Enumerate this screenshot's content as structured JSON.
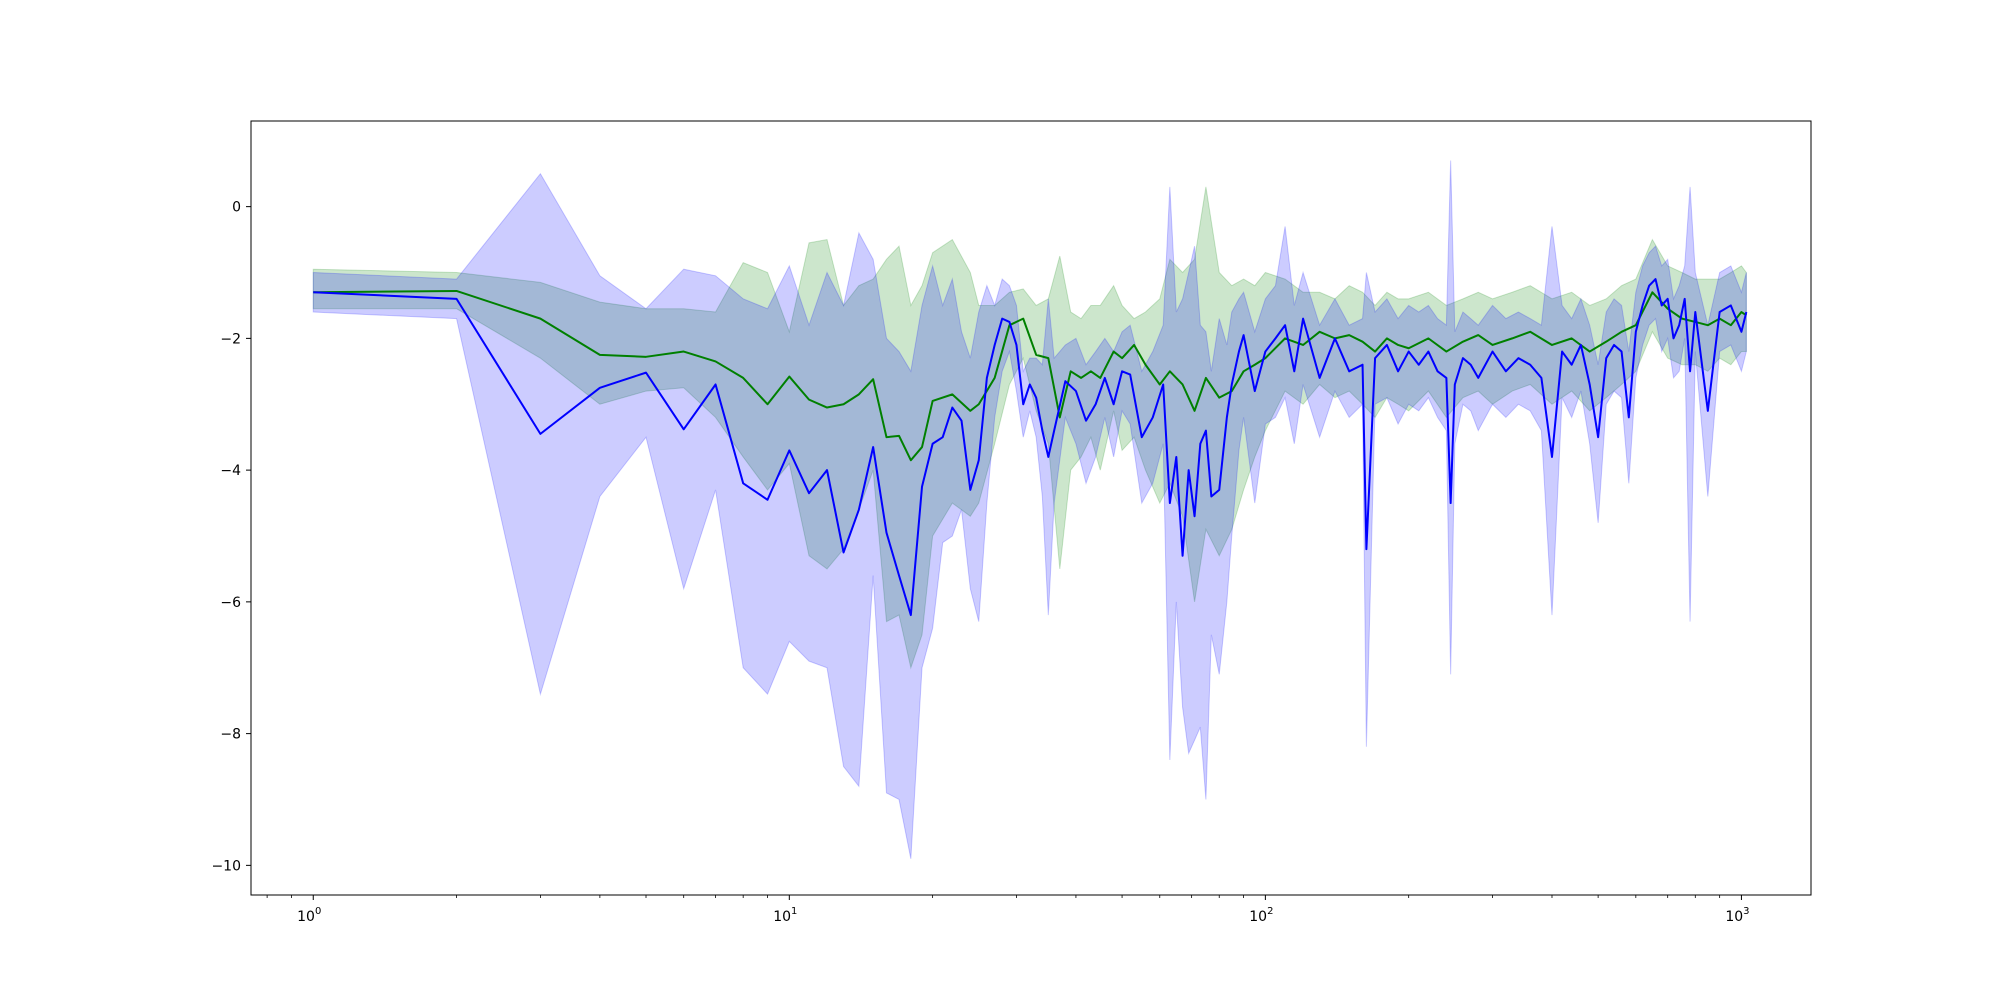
{
  "chart_data": {
    "type": "line",
    "title": "",
    "xlabel": "",
    "ylabel": "",
    "xscale": "log",
    "xlim": [
      0.74,
      1400
    ],
    "ylim": [
      -10.45,
      1.3
    ],
    "grid": false,
    "legend": "none",
    "x_ticks": [
      {
        "base": "10",
        "exp": "0",
        "value": 1
      },
      {
        "base": "10",
        "exp": "1",
        "value": 10
      },
      {
        "base": "10",
        "exp": "2",
        "value": 100
      },
      {
        "base": "10",
        "exp": "3",
        "value": 1000
      }
    ],
    "y_ticks": [
      {
        "label": "0",
        "value": 0
      },
      {
        "label": "−2",
        "value": -2
      },
      {
        "label": "−4",
        "value": -4
      },
      {
        "label": "−6",
        "value": -6
      },
      {
        "label": "−8",
        "value": -8
      },
      {
        "label": "−10",
        "value": -10
      }
    ],
    "series": [
      {
        "color": "#008000",
        "band_color": "#008000",
        "band_opacity": 0.2,
        "x": [
          1,
          2,
          3,
          4,
          5,
          6,
          7,
          8,
          9,
          10,
          11,
          12,
          13,
          14,
          15,
          16,
          17,
          18,
          19,
          20,
          22,
          24,
          25,
          27,
          29,
          31,
          33,
          35,
          37,
          39,
          41,
          43,
          45,
          48,
          50,
          53,
          56,
          60,
          63,
          67,
          71,
          75,
          80,
          85,
          90,
          95,
          100,
          110,
          120,
          130,
          140,
          150,
          160,
          170,
          180,
          190,
          200,
          220,
          240,
          260,
          280,
          300,
          330,
          360,
          400,
          440,
          480,
          520,
          560,
          600,
          650,
          700,
          750,
          800,
          850,
          900,
          950,
          1000,
          1024
        ],
        "y": [
          -1.3,
          -1.28,
          -1.7,
          -2.25,
          -2.28,
          -2.2,
          -2.35,
          -2.6,
          -3.0,
          -2.58,
          -2.93,
          -3.05,
          -3.0,
          -2.85,
          -2.62,
          -3.5,
          -3.48,
          -3.85,
          -3.65,
          -2.95,
          -2.85,
          -3.1,
          -3.0,
          -2.6,
          -1.8,
          -1.7,
          -2.25,
          -2.3,
          -3.2,
          -2.5,
          -2.6,
          -2.5,
          -2.6,
          -2.2,
          -2.3,
          -2.1,
          -2.4,
          -2.7,
          -2.5,
          -2.7,
          -3.1,
          -2.6,
          -2.9,
          -2.8,
          -2.5,
          -2.4,
          -2.3,
          -2.0,
          -2.1,
          -1.9,
          -2.0,
          -1.95,
          -2.05,
          -2.2,
          -2.0,
          -2.1,
          -2.15,
          -2.0,
          -2.2,
          -2.05,
          -1.95,
          -2.1,
          -2.0,
          -1.9,
          -2.1,
          -2.0,
          -2.2,
          -2.05,
          -1.9,
          -1.8,
          -1.3,
          -1.55,
          -1.7,
          -1.75,
          -1.8,
          -1.7,
          -1.8,
          -1.6,
          -1.65
        ],
        "low": [
          -1.55,
          -1.55,
          -2.3,
          -3.0,
          -2.8,
          -2.75,
          -3.2,
          -3.8,
          -4.3,
          -3.9,
          -5.3,
          -5.5,
          -5.2,
          -4.6,
          -4.0,
          -6.3,
          -6.2,
          -7.0,
          -6.5,
          -5.0,
          -4.5,
          -4.7,
          -4.5,
          -3.6,
          -2.7,
          -2.3,
          -3.1,
          -3.6,
          -5.5,
          -4.0,
          -3.8,
          -3.5,
          -4.0,
          -3.1,
          -3.7,
          -3.5,
          -4.0,
          -4.5,
          -4.2,
          -4.7,
          -6.0,
          -4.9,
          -5.3,
          -4.9,
          -4.3,
          -3.8,
          -3.4,
          -2.8,
          -3.0,
          -2.7,
          -2.9,
          -2.8,
          -3.0,
          -3.2,
          -2.9,
          -3.0,
          -3.1,
          -2.8,
          -3.2,
          -2.9,
          -2.8,
          -3.0,
          -2.8,
          -2.7,
          -3.0,
          -2.8,
          -3.1,
          -2.9,
          -2.7,
          -2.5,
          -1.9,
          -2.3,
          -2.4,
          -2.4,
          -2.5,
          -2.3,
          -2.4,
          -2.2,
          -2.2
        ],
        "high": [
          -0.95,
          -1.0,
          -1.15,
          -1.45,
          -1.55,
          -1.55,
          -1.6,
          -0.85,
          -1.0,
          -1.9,
          -0.55,
          -0.5,
          -1.5,
          -1.2,
          -1.1,
          -0.8,
          -0.6,
          -1.5,
          -1.2,
          -0.7,
          -0.5,
          -1.0,
          -1.5,
          -1.5,
          -1.3,
          -1.25,
          -1.5,
          -1.4,
          -0.75,
          -1.6,
          -1.7,
          -1.5,
          -1.5,
          -1.2,
          -1.5,
          -1.7,
          -1.6,
          -1.4,
          -0.8,
          -1.0,
          -0.8,
          0.3,
          -1.0,
          -1.2,
          -1.1,
          -1.2,
          -1.0,
          -1.1,
          -1.3,
          -1.3,
          -1.4,
          -1.2,
          -1.3,
          -1.5,
          -1.3,
          -1.4,
          -1.4,
          -1.3,
          -1.5,
          -1.4,
          -1.3,
          -1.4,
          -1.3,
          -1.2,
          -1.4,
          -1.3,
          -1.5,
          -1.4,
          -1.2,
          -1.1,
          -0.5,
          -0.9,
          -1.0,
          -1.1,
          -1.1,
          -1.1,
          -1.0,
          -0.9,
          -1.0
        ]
      },
      {
        "color": "#0000ff",
        "band_color": "#0000ff",
        "band_opacity": 0.2,
        "x": [
          1,
          2,
          3,
          4,
          5,
          6,
          7,
          8,
          9,
          10,
          11,
          12,
          13,
          14,
          15,
          16,
          17,
          18,
          19,
          20,
          21,
          22,
          23,
          24,
          25,
          26,
          27,
          28,
          29,
          30,
          31,
          32,
          33,
          34,
          35,
          36,
          38,
          40,
          42,
          44,
          46,
          48,
          50,
          52,
          55,
          58,
          61,
          63,
          65,
          67,
          69,
          71,
          73,
          75,
          77,
          80,
          83,
          85,
          88,
          90,
          95,
          100,
          105,
          110,
          115,
          120,
          130,
          140,
          150,
          160,
          163,
          170,
          180,
          190,
          200,
          210,
          220,
          230,
          240,
          245,
          250,
          260,
          270,
          280,
          300,
          320,
          340,
          360,
          380,
          400,
          420,
          440,
          460,
          480,
          500,
          520,
          540,
          560,
          580,
          600,
          620,
          640,
          660,
          680,
          700,
          720,
          740,
          760,
          780,
          800,
          850,
          900,
          950,
          1000,
          1024
        ],
        "y": [
          -1.3,
          -1.4,
          -3.45,
          -2.75,
          -2.52,
          -3.38,
          -2.7,
          -4.2,
          -4.45,
          -3.7,
          -4.35,
          -4.0,
          -5.25,
          -4.6,
          -3.65,
          -4.95,
          -5.6,
          -6.2,
          -4.25,
          -3.6,
          -3.5,
          -3.05,
          -3.25,
          -4.3,
          -3.85,
          -2.6,
          -2.1,
          -1.7,
          -1.75,
          -2.1,
          -3.0,
          -2.7,
          -2.9,
          -3.4,
          -3.8,
          -3.4,
          -2.65,
          -2.8,
          -3.25,
          -3.0,
          -2.6,
          -3.0,
          -2.5,
          -2.55,
          -3.5,
          -3.2,
          -2.7,
          -4.5,
          -3.8,
          -5.3,
          -4.0,
          -4.7,
          -3.6,
          -3.4,
          -4.4,
          -4.3,
          -3.2,
          -2.7,
          -2.2,
          -1.95,
          -2.8,
          -2.2,
          -2.0,
          -1.8,
          -2.5,
          -1.7,
          -2.6,
          -2.0,
          -2.5,
          -2.4,
          -5.2,
          -2.3,
          -2.1,
          -2.5,
          -2.2,
          -2.4,
          -2.2,
          -2.5,
          -2.6,
          -4.5,
          -2.7,
          -2.3,
          -2.4,
          -2.6,
          -2.2,
          -2.5,
          -2.3,
          -2.4,
          -2.6,
          -3.8,
          -2.2,
          -2.4,
          -2.1,
          -2.7,
          -3.5,
          -2.3,
          -2.1,
          -2.2,
          -3.2,
          -1.9,
          -1.5,
          -1.2,
          -1.1,
          -1.5,
          -1.4,
          -2.0,
          -1.8,
          -1.4,
          -2.5,
          -1.6,
          -3.1,
          -1.6,
          -1.5,
          -1.9,
          -1.6
        ],
        "low": [
          -1.6,
          -1.7,
          -7.4,
          -4.4,
          -3.5,
          -5.8,
          -4.3,
          -7.0,
          -7.4,
          -6.6,
          -6.9,
          -7.0,
          -8.5,
          -8.8,
          -5.6,
          -8.9,
          -9.0,
          -9.9,
          -7.0,
          -6.4,
          -5.1,
          -5.0,
          -4.6,
          -5.8,
          -6.3,
          -4.5,
          -3.2,
          -2.5,
          -2.2,
          -2.8,
          -3.5,
          -3.1,
          -3.5,
          -4.4,
          -6.2,
          -4.5,
          -3.2,
          -3.6,
          -4.2,
          -3.8,
          -3.2,
          -3.8,
          -3.1,
          -3.3,
          -4.5,
          -4.2,
          -3.6,
          -8.4,
          -6.0,
          -7.6,
          -8.3,
          -8.1,
          -7.9,
          -9.0,
          -6.5,
          -7.1,
          -6.0,
          -5.0,
          -3.7,
          -3.2,
          -4.5,
          -3.3,
          -3.2,
          -2.9,
          -3.6,
          -2.7,
          -3.5,
          -2.8,
          -3.2,
          -3.0,
          -8.2,
          -3.0,
          -2.9,
          -3.3,
          -3.0,
          -3.1,
          -2.9,
          -3.2,
          -3.4,
          -7.1,
          -3.6,
          -3.0,
          -3.1,
          -3.4,
          -3.0,
          -3.2,
          -3.0,
          -3.1,
          -3.4,
          -6.2,
          -2.9,
          -3.2,
          -2.8,
          -3.6,
          -4.8,
          -3.0,
          -2.8,
          -2.9,
          -4.2,
          -2.6,
          -2.1,
          -1.8,
          -1.7,
          -2.2,
          -2.0,
          -2.6,
          -2.5,
          -2.0,
          -6.3,
          -2.2,
          -4.4,
          -2.2,
          -2.1,
          -2.5,
          -2.2
        ],
        "high": [
          -1.0,
          -1.1,
          0.5,
          -1.05,
          -1.55,
          -0.95,
          -1.05,
          -1.4,
          -1.55,
          -0.9,
          -1.8,
          -1.0,
          -1.5,
          -0.4,
          -0.8,
          -2.0,
          -2.2,
          -2.5,
          -1.5,
          -0.9,
          -1.5,
          -1.1,
          -1.9,
          -2.3,
          -1.6,
          -1.2,
          -1.5,
          -1.1,
          -1.2,
          -1.5,
          -2.5,
          -2.3,
          -2.3,
          -2.4,
          -1.4,
          -2.3,
          -2.1,
          -2.0,
          -2.4,
          -2.2,
          -2.0,
          -2.2,
          -1.9,
          -1.8,
          -2.5,
          -2.2,
          -1.8,
          0.3,
          -1.6,
          -1.4,
          -1.0,
          -0.6,
          -1.8,
          -1.9,
          -2.5,
          -1.7,
          -2.1,
          -1.6,
          -1.4,
          -1.3,
          -1.9,
          -1.4,
          -1.2,
          -0.3,
          -1.5,
          -1.0,
          -1.8,
          -1.4,
          -1.8,
          -1.7,
          -1.0,
          -1.6,
          -1.4,
          -1.7,
          -1.5,
          -1.6,
          -1.5,
          -1.7,
          -1.8,
          0.7,
          -1.9,
          -1.6,
          -1.7,
          -1.8,
          -1.5,
          -1.7,
          -1.6,
          -1.7,
          -1.8,
          -0.3,
          -1.5,
          -1.7,
          -1.4,
          -1.8,
          -2.4,
          -1.6,
          -1.4,
          -1.5,
          -2.2,
          -1.3,
          -0.9,
          -0.7,
          -0.6,
          -0.9,
          -0.8,
          -1.4,
          -1.2,
          -0.9,
          0.3,
          -1.0,
          -1.8,
          -1.0,
          -0.9,
          -1.3,
          -1.0
        ]
      }
    ]
  }
}
